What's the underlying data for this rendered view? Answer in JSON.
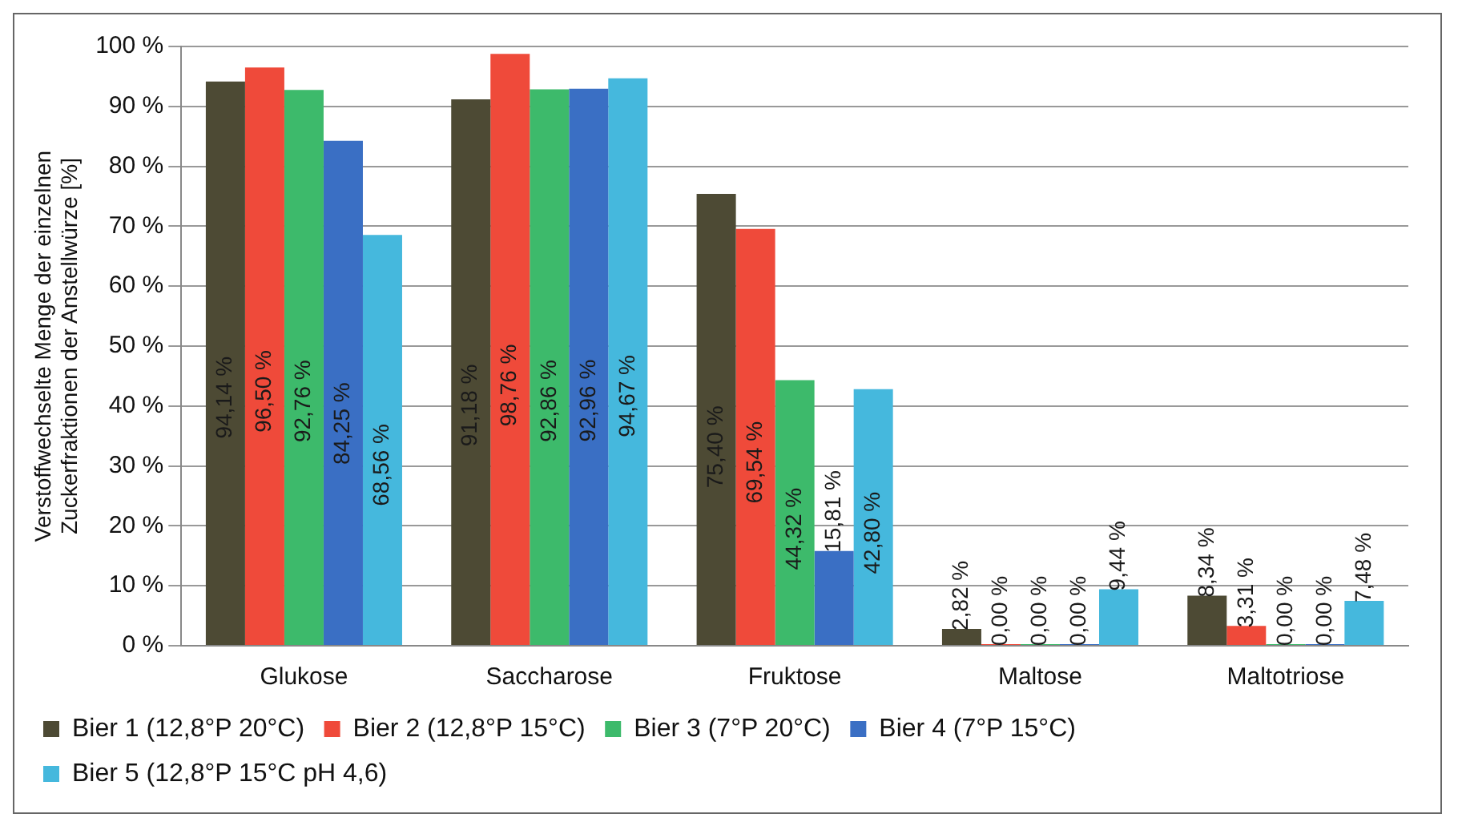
{
  "chart_data": {
    "type": "bar",
    "ylabel": "Verstoffwechselte Menge der einzelnen\nZuckerfraktionen der Anstellwürze [%]",
    "categories": [
      "Glukose",
      "Saccharose",
      "Fruktose",
      "Maltose",
      "Maltotriose"
    ],
    "series": [
      {
        "name": "Bier 1 (12,8°P 20°C)",
        "color": "#4d4a34",
        "values": [
          94.14,
          91.18,
          75.4,
          2.82,
          8.34
        ],
        "value_labels": [
          "94,14 %",
          "91,18 %",
          "75,40 %",
          "2,82 %",
          "8,34 %"
        ]
      },
      {
        "name": "Bier 2 (12,8°P 15°C)",
        "color": "#ef4a3a",
        "values": [
          96.5,
          98.76,
          69.54,
          0,
          3.31
        ],
        "value_labels": [
          "96,50 %",
          "98,76 %",
          "69,54 %",
          "0,00 %",
          "3,31 %"
        ]
      },
      {
        "name": "Bier 3 (7°P 20°C)",
        "color": "#3dba6b",
        "values": [
          92.76,
          92.86,
          44.32,
          0,
          0
        ],
        "value_labels": [
          "92,76 %",
          "92,86 %",
          "44,32 %",
          "0,00 %",
          "0,00 %"
        ]
      },
      {
        "name": "Bier 4 (7°P 15°C)",
        "color": "#3a6fc4",
        "values": [
          84.25,
          92.96,
          15.81,
          0,
          0
        ],
        "value_labels": [
          "84,25 %",
          "92,96 %",
          "15,81 %",
          "0,00 %",
          "0,00 %"
        ]
      },
      {
        "name": "Bier 5 (12,8°P 15°C pH 4,6)",
        "color": "#45b8dd",
        "values": [
          68.56,
          94.67,
          42.8,
          9.44,
          7.48
        ],
        "value_labels": [
          "68,56 %",
          "94,67 %",
          "42,80 %",
          "9,44 %",
          "7,48 %"
        ]
      }
    ],
    "ylim": [
      0,
      100
    ],
    "yticks": [
      {
        "value": 0,
        "label": "0 %"
      },
      {
        "value": 10,
        "label": "10 %"
      },
      {
        "value": 20,
        "label": "20 %"
      },
      {
        "value": 30,
        "label": "30 %"
      },
      {
        "value": 40,
        "label": "40 %"
      },
      {
        "value": 50,
        "label": "50 %"
      },
      {
        "value": 60,
        "label": "60 %"
      },
      {
        "value": 70,
        "label": "70 %"
      },
      {
        "value": 80,
        "label": "80 %"
      },
      {
        "value": 90,
        "label": "90 %"
      },
      {
        "value": 100,
        "label": "100 %"
      }
    ],
    "grid": "y",
    "legend": "bottom"
  }
}
